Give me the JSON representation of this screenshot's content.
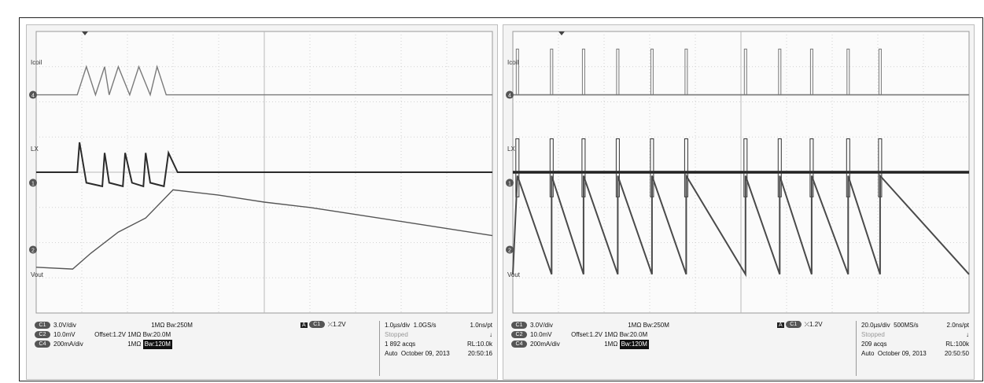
{
  "chart_data": [
    {
      "type": "line",
      "title": "",
      "xlim": [
        0,
        10
      ],
      "ylim": [
        -4,
        4
      ],
      "grid": true,
      "series": [
        {
          "name": "Icoil",
          "x": [
            0.0,
            0.55,
            0.9,
            1.1,
            1.3,
            1.5,
            1.6,
            1.8,
            2.05,
            2.25,
            2.5,
            2.65,
            2.85,
            3.0,
            10.0
          ],
          "y": [
            2.2,
            2.2,
            2.2,
            3.0,
            2.2,
            3.0,
            2.2,
            3.0,
            2.2,
            3.0,
            2.2,
            3.0,
            2.2,
            2.2,
            2.2
          ]
        },
        {
          "name": "LX",
          "x": [
            0.0,
            0.9,
            0.95,
            1.1,
            1.45,
            1.5,
            1.6,
            1.9,
            1.95,
            2.1,
            2.35,
            2.4,
            2.5,
            2.8,
            2.9,
            3.1,
            10.0
          ],
          "y": [
            0.0,
            0.0,
            0.85,
            -0.3,
            -0.4,
            0.55,
            -0.3,
            -0.4,
            0.55,
            -0.3,
            -0.4,
            0.55,
            -0.3,
            -0.4,
            0.55,
            0.0,
            0.0
          ]
        },
        {
          "name": "Vout",
          "x": [
            0.0,
            0.8,
            1.2,
            1.8,
            2.4,
            3.0,
            4.0,
            5.0,
            6.0,
            7.0,
            8.0,
            9.0,
            10.0
          ],
          "y": [
            -2.7,
            -2.75,
            -2.3,
            -1.7,
            -1.3,
            -0.5,
            -0.65,
            -0.85,
            -1.0,
            -1.2,
            -1.4,
            -1.6,
            -1.8
          ]
        }
      ]
    },
    {
      "type": "line",
      "title": "",
      "xlim": [
        0,
        10
      ],
      "ylim": [
        -4,
        4
      ],
      "grid": true,
      "spikes": [
        0.1,
        0.85,
        1.55,
        2.3,
        3.05,
        3.8,
        5.1,
        5.85,
        6.55,
        7.35,
        8.05
      ],
      "series": [
        {
          "name": "Icoil",
          "baseline": 2.2,
          "peak": 3.5
        },
        {
          "name": "LX",
          "baseline": 0.0,
          "high": 0.95,
          "low": -0.7
        },
        {
          "name": "Vout",
          "high": -0.1,
          "low": -2.9
        }
      ]
    }
  ],
  "scopes": [
    {
      "labels": {
        "icoil": "Icoil",
        "lx": "LX",
        "vout": "Vout"
      },
      "markers": {
        "c4": "4",
        "c1": "1",
        "c2": "2"
      },
      "channels": [
        {
          "badge": "C1",
          "scale": "3.0V/div",
          "imp": "1MΩ",
          "bw": "Bw:250M",
          "offset": ""
        },
        {
          "badge": "C2",
          "scale": "10.0mV",
          "imp": "1MΩ",
          "bw": "Bw:20.0M",
          "offset": "Offset:1.2V"
        },
        {
          "badge": "C4",
          "scale": "200mA/div",
          "imp": "1MΩ",
          "bw": "Bw:120M",
          "offset": ""
        }
      ],
      "trigger": {
        "a": "A",
        "src": "C1",
        "sym": "⤫",
        "level": "1.2V"
      },
      "timebase": {
        "div": "1.0µs/div",
        "rate": "1.0GS/s",
        "pt": "1.0ns/pt",
        "state": "Stopped",
        "acqs": "1 892 acqs",
        "rl": "RL:10.0k",
        "mode": "Auto",
        "date": "October 09, 2013",
        "time": "20:50:16"
      }
    },
    {
      "labels": {
        "icoil": "Icoil",
        "lx": "LX",
        "vout": "Vout"
      },
      "markers": {
        "c4": "4",
        "c1": "1",
        "c2": "2"
      },
      "channels": [
        {
          "badge": "C1",
          "scale": "3.0V/div",
          "imp": "1MΩ",
          "bw": "Bw:250M",
          "offset": ""
        },
        {
          "badge": "C2",
          "scale": "10.0mV",
          "imp": "1MΩ",
          "bw": "Bw:20.0M",
          "offset": "Offset:1.2V"
        },
        {
          "badge": "C4",
          "scale": "200mA/div",
          "imp": "1MΩ",
          "bw": "Bw:120M",
          "offset": ""
        }
      ],
      "trigger": {
        "a": "A",
        "src": "C1",
        "sym": "⤫",
        "level": "1.2V"
      },
      "timebase": {
        "div": "20.0µs/div",
        "rate": "500MS/s",
        "pt": "2.0ns/pt",
        "state": "Stopped",
        "acqs": "209 acqs",
        "rl": "RL:100k",
        "mode": "Auto",
        "date": "October 09, 2013",
        "time": "20:50:50"
      }
    }
  ]
}
